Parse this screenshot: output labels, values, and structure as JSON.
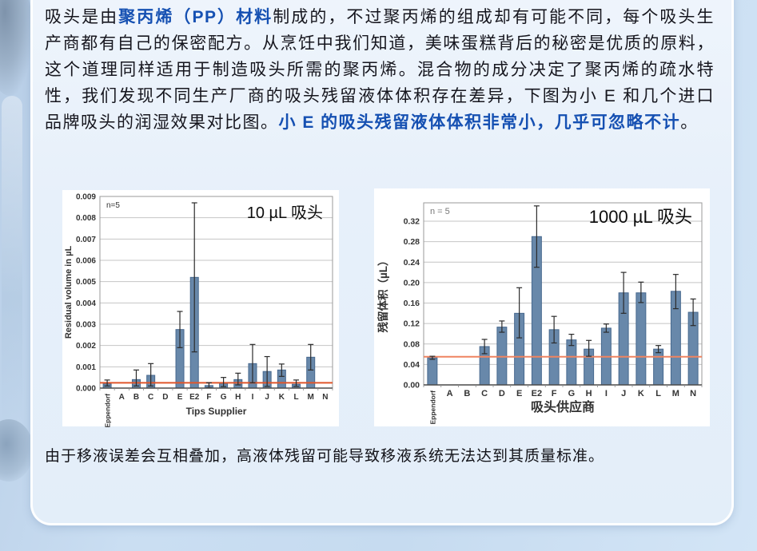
{
  "colors": {
    "background": "#c9ddf2",
    "panel": "#e9f1fa",
    "body_text": "#16161e",
    "highlight_text": "#1550b2",
    "bar_fill": "#6888aa",
    "bar_stroke": "#47688e",
    "error_bar": "#2b2b2b",
    "grid": "#c4c4c4",
    "plot_border": "#9a9a9a",
    "axis": "#4a4a4a",
    "tick_label": "#333333"
  },
  "paragraph": {
    "segments": [
      {
        "text": "吸头是由",
        "bold": false
      },
      {
        "text": "聚丙烯（PP）材料",
        "bold": true
      },
      {
        "text": "制成的，不过聚丙烯的组成却有可能不同，每个吸头生产商都有自己的保密配方。从烹饪中我们知道，美味蛋糕背后的秘密是优质的原料，这个道理同样适用于制造吸头所需的聚丙烯。混合物的成分决定了聚丙烯的疏水特性，我们发现不同生产厂商的吸头残留液体体积存在差异，下图为小 E 和几个进口品牌吸头的润湿效果对比图。",
        "bold": false
      },
      {
        "text": "小 E 的吸头残留液体体积非常小，几乎可忽略不计",
        "bold": true
      },
      {
        "text": "。",
        "bold": false
      }
    ]
  },
  "footer": {
    "text": "由于移液误差会互相叠加，高液体残留可能导致移液系统无法达到其质量标准。"
  },
  "chart_data": [
    {
      "type": "bar",
      "title": "10 µL 吸头",
      "annotation": "n=5",
      "ylabel": "Residual volume in µL",
      "xlabel": "Tips Supplier",
      "ylim": [
        0,
        0.009
      ],
      "ytick_step": 0.001,
      "ytick_max": 0.009,
      "tick_decimals": 3,
      "grid": true,
      "legend": "none",
      "categories": [
        "Eppendorf",
        "A",
        "B",
        "C",
        "D",
        "E",
        "E2",
        "F",
        "G",
        "H",
        "I",
        "J",
        "K",
        "L",
        "M",
        "N"
      ],
      "values": [
        0.0002,
        0,
        0.0004,
        0.0006,
        0,
        0.00275,
        0.0052,
        0.00012,
        0.00022,
        0.0004,
        0.00115,
        0.00078,
        0.00085,
        0.00018,
        0.00145,
        0
      ],
      "err_up": [
        0.00018,
        0,
        0.00045,
        0.00055,
        0,
        0.00085,
        0.0035,
        0.00013,
        0.00028,
        0.0003,
        0.0009,
        0.0007,
        0.00028,
        0.0002,
        0.0006,
        0
      ],
      "err_down": [
        0.0001,
        0,
        0.0003,
        0.0005,
        0,
        0.00085,
        0.0035,
        0.0001,
        0.00015,
        0.00025,
        0.0009,
        0.0007,
        0.0003,
        0.0001,
        0.0006,
        0
      ],
      "ref_line": 0.00025,
      "ref_color": "#e0562b"
    },
    {
      "type": "bar",
      "title": "1000 µL 吸头",
      "annotation": "n = 5",
      "ylabel": "残留体积（µL）",
      "xlabel": "吸头供应商",
      "ylim": [
        0,
        0.356
      ],
      "ytick_step": 0.04,
      "ytick_max": 0.32,
      "tick_decimals": 2,
      "grid": true,
      "legend": "none",
      "categories": [
        "Eppendorf",
        "A",
        "B",
        "C",
        "D",
        "E",
        "E2",
        "F",
        "G",
        "H",
        "I",
        "J",
        "K",
        "L",
        "M",
        "N"
      ],
      "values": [
        0.053,
        0,
        0,
        0.075,
        0.113,
        0.14,
        0.29,
        0.108,
        0.088,
        0.07,
        0.111,
        0.18,
        0.18,
        0.07,
        0.183,
        0.142
      ],
      "err_up": [
        0.003,
        0,
        0,
        0.014,
        0.012,
        0.05,
        0.06,
        0.026,
        0.011,
        0.017,
        0.008,
        0.04,
        0.021,
        0.007,
        0.033,
        0.026
      ],
      "err_down": [
        0.003,
        0,
        0,
        0.014,
        0.01,
        0.048,
        0.06,
        0.026,
        0.011,
        0.014,
        0.008,
        0.04,
        0.019,
        0.007,
        0.034,
        0.026
      ],
      "ref_line": 0.055,
      "ref_color": "#ef8460"
    }
  ]
}
